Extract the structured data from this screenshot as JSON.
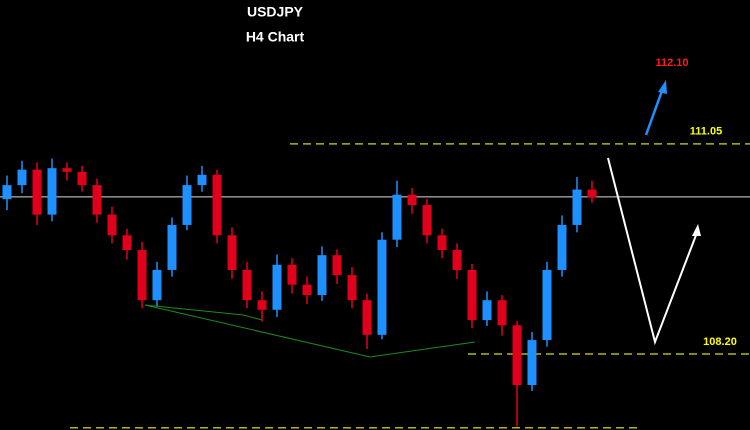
{
  "chart_data": {
    "type": "candlestick",
    "title": "USDJPY",
    "subtitle": "H4 Chart",
    "open": [
      110.3,
      110.49,
      110.7,
      110.09,
      110.72,
      110.67,
      110.49,
      110.09,
      109.81,
      109.61,
      108.93,
      109.34,
      109.95,
      110.49,
      110.63,
      109.81,
      109.34,
      108.93,
      108.8,
      109.41,
      109.14,
      109.0,
      109.54,
      109.27,
      108.93,
      108.46,
      109.75,
      110.36,
      110.22,
      109.81,
      109.61,
      109.34,
      108.66,
      108.93,
      108.59,
      107.78,
      108.39,
      109.34,
      109.95,
      110.43
    ],
    "high": [
      110.62,
      110.82,
      110.8,
      110.85,
      110.8,
      110.75,
      110.58,
      110.2,
      109.9,
      109.72,
      109.45,
      110.05,
      110.62,
      110.75,
      110.7,
      109.92,
      109.45,
      109.05,
      109.55,
      109.5,
      109.25,
      109.66,
      109.62,
      109.38,
      109.02,
      109.85,
      110.55,
      110.45,
      110.3,
      109.9,
      109.7,
      109.42,
      109.05,
      109.0,
      108.65,
      108.5,
      109.45,
      110.08,
      110.6,
      110.55
    ],
    "low": [
      110.15,
      110.38,
      109.95,
      110.0,
      110.55,
      110.4,
      109.98,
      109.7,
      109.48,
      108.82,
      108.85,
      109.25,
      109.88,
      110.4,
      109.7,
      109.22,
      108.82,
      108.64,
      108.7,
      109.02,
      108.88,
      108.92,
      109.15,
      108.82,
      108.27,
      108.4,
      109.65,
      110.1,
      109.7,
      109.5,
      109.22,
      108.55,
      108.58,
      108.45,
      107.22,
      107.7,
      108.3,
      109.25,
      109.85,
      110.25
    ],
    "close": [
      110.49,
      110.7,
      110.09,
      110.72,
      110.67,
      110.49,
      110.09,
      109.81,
      109.61,
      108.93,
      109.34,
      109.95,
      110.49,
      110.63,
      109.81,
      109.34,
      108.93,
      108.8,
      109.41,
      109.14,
      109.0,
      109.54,
      109.27,
      108.93,
      108.46,
      109.75,
      110.36,
      110.22,
      109.81,
      109.61,
      109.34,
      108.66,
      108.93,
      108.59,
      107.78,
      108.39,
      109.34,
      109.95,
      110.43,
      110.32
    ],
    "up_color": "#1e90ff",
    "down_color": "#e0001b",
    "ylim": [
      107.17,
      113.0
    ],
    "current_price": 110.33,
    "levels": [
      111.05,
      {
        "value": 108.2,
        "label": "108.20"
      },
      107.2
    ],
    "target": {
      "value": 112.1,
      "label": "112.10"
    }
  }
}
